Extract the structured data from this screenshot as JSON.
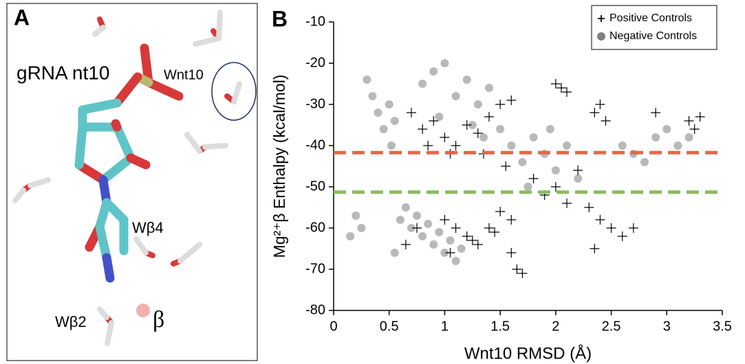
{
  "panel_labels": [
    "A",
    "B"
  ],
  "structure": {
    "labels": [
      "gRNA nt10",
      "Wnt10",
      "Wβ4",
      "Wβ2",
      "β"
    ]
  },
  "chart_data": {
    "type": "scatter",
    "x_label": "Wnt10 RMSD (Å)",
    "y_label": "Mg²⁺β Enthalpy (kcal/mol)",
    "xlim": [
      0,
      3.5
    ],
    "xticks": [
      0,
      0.5,
      1,
      1.5,
      2,
      2.5,
      3,
      3.5
    ],
    "ylim": [
      -80,
      -10
    ],
    "yticks": [
      -80,
      -70,
      -60,
      -50,
      -40,
      -30,
      -20,
      -10
    ],
    "legend": "top-right",
    "hlines": [
      {
        "value": -41.7,
        "color": "#e2674b"
      },
      {
        "value": -51.3,
        "color": "#8cbc5c"
      }
    ],
    "series": [
      {
        "name": "Negative Controls",
        "color": "#808080",
        "marker": "circle",
        "x": [
          0.3,
          0.35,
          0.4,
          0.45,
          0.5,
          0.52,
          0.55,
          0.2,
          0.25,
          0.15,
          0.6,
          0.7,
          0.8,
          0.9,
          1.0,
          1.1,
          0.65,
          0.75,
          0.85,
          0.95,
          1.05,
          1.15,
          0.8,
          0.9,
          1.0,
          1.1,
          1.2,
          1.3,
          1.4,
          1.25,
          1.35,
          0.95,
          1.5,
          1.6,
          1.7,
          1.8,
          1.9,
          2.0,
          2.1,
          2.2,
          1.75,
          1.95,
          2.6,
          2.7,
          2.8,
          2.9,
          3.0,
          3.1,
          3.2,
          0.55
        ],
        "values": [
          -24,
          -28,
          -32,
          -36,
          -30,
          -40,
          -34,
          -57,
          -60,
          -62,
          -58,
          -60,
          -62,
          -64,
          -66,
          -68,
          -55,
          -57,
          -59,
          -61,
          -63,
          -65,
          -25,
          -22,
          -20,
          -28,
          -24,
          -30,
          -26,
          -35,
          -38,
          -33,
          -36,
          -40,
          -44,
          -38,
          -42,
          -46,
          -40,
          -48,
          -50,
          -36,
          -40,
          -42,
          -44,
          -38,
          -36,
          -40,
          -38,
          -66
        ]
      },
      {
        "name": "Positive Controls",
        "color": "#000000",
        "marker": "plus",
        "x": [
          0.7,
          0.8,
          0.9,
          1.0,
          1.1,
          1.2,
          1.3,
          1.4,
          0.85,
          1.05,
          1.0,
          1.1,
          1.2,
          1.3,
          1.4,
          1.5,
          1.6,
          1.05,
          1.25,
          1.45,
          1.6,
          1.65,
          1.7,
          1.55,
          2.0,
          2.05,
          2.1,
          2.35,
          2.4,
          2.45,
          2.9,
          3.2,
          3.25,
          3.3,
          2.3,
          2.4,
          2.5,
          2.6,
          2.7,
          2.35,
          1.8,
          1.9,
          2.0,
          2.1,
          2.2,
          1.5,
          1.6,
          1.35,
          0.75,
          0.65
        ],
        "values": [
          -32,
          -36,
          -34,
          -38,
          -40,
          -35,
          -37,
          -33,
          -40,
          -42,
          -58,
          -60,
          -62,
          -64,
          -60,
          -56,
          -58,
          -66,
          -63,
          -61,
          -66,
          -70,
          -71,
          -45,
          -25,
          -26,
          -27,
          -32,
          -30,
          -34,
          -32,
          -34,
          -36,
          -33,
          -55,
          -58,
          -60,
          -62,
          -60,
          -65,
          -48,
          -52,
          -50,
          -54,
          -46,
          -30,
          -29,
          -42,
          -60,
          -64
        ]
      }
    ]
  }
}
